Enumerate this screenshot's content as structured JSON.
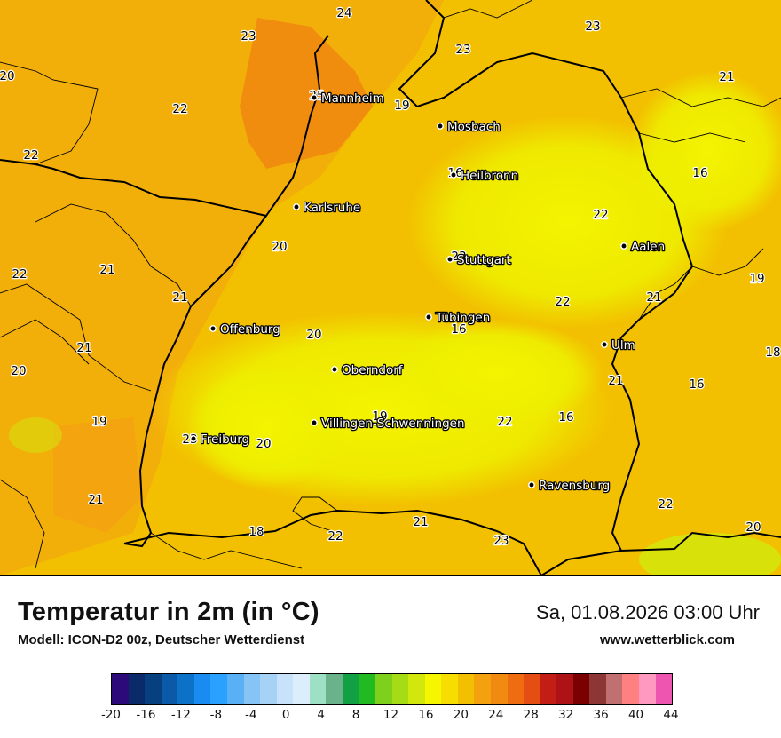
{
  "title": "Temperatur in 2m (in °C)",
  "model": "Modell: ICON-D2 00z, Deutscher Wetterdienst",
  "datetime": "Sa, 01.08.2026 03:00 Uhr",
  "website": "www.wetterblick.com",
  "legend": {
    "colors": [
      "#2d0a7a",
      "#0a2a6a",
      "#07407f",
      "#0a5aa8",
      "#0b72c8",
      "#1a8bf0",
      "#2aa0ff",
      "#5ab0f5",
      "#86c4f5",
      "#a6d2f5",
      "#c8e2fb",
      "#dceefc",
      "#9ee0c4",
      "#6ab28a",
      "#11a044",
      "#21bb21",
      "#7fd01c",
      "#a6dc16",
      "#d2e80c",
      "#f6f601",
      "#f6de00",
      "#f2c000",
      "#f4a110",
      "#f08a10",
      "#ef6d10",
      "#e54e12",
      "#c31e16",
      "#ad1217",
      "#7a0002",
      "#8c3636",
      "#c07070",
      "#ff8080",
      "#ff99c0",
      "#ee55b0"
    ],
    "labels": [
      "-20",
      "-16",
      "-12",
      "-8",
      "-4",
      "0",
      "4",
      "8",
      "12",
      "16",
      "20",
      "24",
      "28",
      "32",
      "36",
      "40",
      "44"
    ]
  },
  "cities": [
    {
      "name": "Mannheim"
    },
    {
      "name": "Mosbach"
    },
    {
      "name": "Heilbronn"
    },
    {
      "name": "Karlsruhe"
    },
    {
      "name": "Aalen"
    },
    {
      "name": "Stuttgart"
    },
    {
      "name": "Offenburg"
    },
    {
      "name": "Tübingen"
    },
    {
      "name": "Ulm"
    },
    {
      "name": "Oberndorf"
    },
    {
      "name": "Villingen-Schwenningen"
    },
    {
      "name": "Freiburg"
    },
    {
      "name": "Ravensburg"
    }
  ],
  "temperature_values": [
    "24",
    "23",
    "23",
    "23",
    "20",
    "22",
    "25",
    "19",
    "21",
    "22",
    "16",
    "16",
    "22",
    "20",
    "22",
    "21",
    "23",
    "19",
    "21",
    "22",
    "21",
    "20",
    "16",
    "21",
    "18",
    "20",
    "21",
    "16",
    "19",
    "19",
    "22",
    "16",
    "23",
    "20",
    "21",
    "22",
    "21",
    "20",
    "18",
    "22",
    "23"
  ]
}
